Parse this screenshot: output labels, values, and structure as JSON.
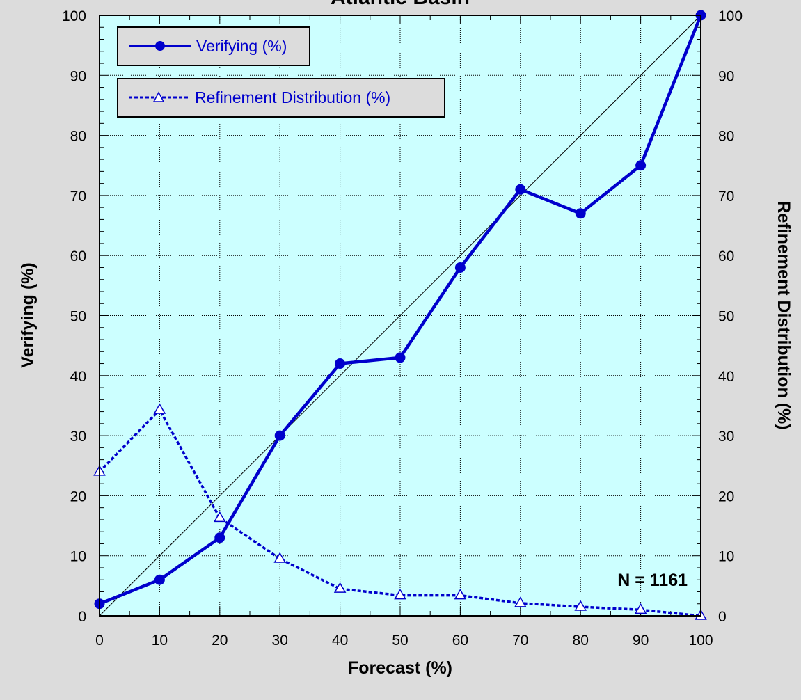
{
  "chart_data": {
    "type": "line",
    "title": "Atlantic Basin",
    "xlabel": "Forecast (%)",
    "ylabel": "Verifying (%)",
    "y2label": "Refinement Distribution (%)",
    "xlim": [
      0,
      100
    ],
    "ylim": [
      0,
      100
    ],
    "y2lim": [
      0,
      100
    ],
    "x_ticks": [
      0,
      10,
      20,
      30,
      40,
      50,
      60,
      70,
      80,
      90,
      100
    ],
    "y_ticks": [
      0,
      10,
      20,
      30,
      40,
      50,
      60,
      70,
      80,
      90,
      100
    ],
    "grid": true,
    "reference_line": {
      "from": [
        0,
        0
      ],
      "to": [
        100,
        100
      ]
    },
    "annotation": "N = 1161",
    "legend_position": "top-left",
    "colors": {
      "plot_bg": "#ccffff",
      "series": "#0000cc",
      "page_bg": "#dcdcdc"
    },
    "series": [
      {
        "name": "Verifying (%)",
        "axis": "left",
        "style": "solid",
        "marker": "circle",
        "x": [
          0,
          10,
          20,
          30,
          40,
          50,
          60,
          70,
          80,
          90,
          100
        ],
        "values": [
          2,
          6,
          13,
          30,
          42,
          43,
          58,
          71,
          67,
          75,
          100
        ]
      },
      {
        "name": "Refinement Distribution (%)",
        "axis": "right",
        "style": "dashed",
        "marker": "triangle",
        "x": [
          0,
          10,
          20,
          30,
          40,
          50,
          60,
          70,
          80,
          90,
          100
        ],
        "values": [
          24,
          34.3,
          16.3,
          9.5,
          4.5,
          3.4,
          3.4,
          2.1,
          1.5,
          1.0,
          0
        ]
      }
    ]
  }
}
